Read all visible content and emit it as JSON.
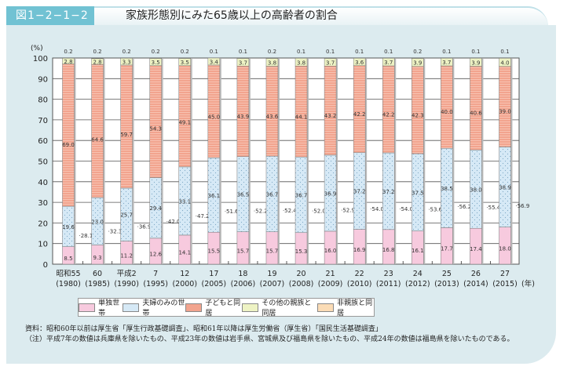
{
  "figure_number": "図1−2−1−2",
  "title": "家族形態別にみた65歳以上の高齢者の割合",
  "chart_data": {
    "type": "bar",
    "stacked": true,
    "title": "家族形態別にみた65歳以上の高齢者の割合",
    "ylabel": "(%)",
    "xlabel_unit": "(年)",
    "ylim": [
      0,
      100
    ],
    "yticks": [
      0,
      10,
      20,
      30,
      40,
      50,
      60,
      70,
      80,
      90,
      100
    ],
    "grid": true,
    "legend_position": "bottom",
    "categories": [
      {
        "era": "昭和55",
        "year": "(1980)"
      },
      {
        "era": "60",
        "year": "(1985)"
      },
      {
        "era": "平成2",
        "year": "(1990)"
      },
      {
        "era": "7",
        "year": "(1995)"
      },
      {
        "era": "12",
        "year": "(2000)"
      },
      {
        "era": "17",
        "year": "(2005)"
      },
      {
        "era": "18",
        "year": "(2006)"
      },
      {
        "era": "19",
        "year": "(2007)"
      },
      {
        "era": "20",
        "year": "(2008)"
      },
      {
        "era": "21",
        "year": "(2009)"
      },
      {
        "era": "22",
        "year": "(2010)"
      },
      {
        "era": "23",
        "year": "(2011)"
      },
      {
        "era": "24",
        "year": "(2012)"
      },
      {
        "era": "25",
        "year": "(2013)"
      },
      {
        "era": "26",
        "year": "(2014)"
      },
      {
        "era": "27",
        "year": "(2015)"
      }
    ],
    "series": [
      {
        "name": "単独世帯",
        "color": "#f7cade",
        "values": [
          8.5,
          9.3,
          11.2,
          12.6,
          14.1,
          15.5,
          15.7,
          15.7,
          15.3,
          16.0,
          16.9,
          16.8,
          16.1,
          17.7,
          17.4,
          18.0
        ]
      },
      {
        "name": "夫婦のみの世帯",
        "color": "#d6e9f6",
        "values": [
          19.6,
          23.0,
          25.7,
          29.4,
          33.1,
          36.1,
          36.5,
          36.7,
          36.7,
          36.9,
          37.2,
          37.2,
          37.5,
          38.5,
          38.0,
          38.9
        ]
      },
      {
        "name": "子どもと同居",
        "color": "#f2a48e",
        "values": [
          69.0,
          64.6,
          59.7,
          54.3,
          49.1,
          45.0,
          43.9,
          43.6,
          44.1,
          43.2,
          42.2,
          42.2,
          42.3,
          40.0,
          40.6,
          39.0
        ]
      },
      {
        "name": "その他の親族と同居",
        "color": "#eef3c4",
        "values": [
          2.8,
          2.8,
          3.3,
          3.5,
          3.5,
          3.4,
          3.7,
          3.8,
          3.8,
          3.7,
          3.6,
          3.7,
          3.9,
          3.7,
          3.9,
          4.0
        ]
      },
      {
        "name": "非親族と同居",
        "color": "#fbdcb6",
        "values": [
          0.2,
          0.2,
          0.2,
          0.2,
          0.2,
          0.1,
          0.1,
          0.2,
          0.1,
          0.1,
          0.1,
          0.1,
          0.2,
          0.1,
          0.1,
          0.1
        ]
      }
    ],
    "subtotal_single_plus_couple": [
      28.1,
      32.3,
      36.9,
      42.0,
      47.2,
      51.6,
      52.2,
      52.4,
      52.0,
      52.9,
      54.0,
      54.0,
      53.6,
      56.2,
      55.4,
      56.9
    ]
  },
  "notes": {
    "source": "資料：昭和60年以前は厚生省「厚生行政基礎調査」、昭和61年以降は厚生労働省（厚生省）「国民生活基礎調査」",
    "note": "（注）平成7年の数値は兵庫県を除いたもの、平成23年の数値は岩手県、宮城県及び福島県を除いたもの、平成24年の数値は福島県を除いたものである。"
  }
}
